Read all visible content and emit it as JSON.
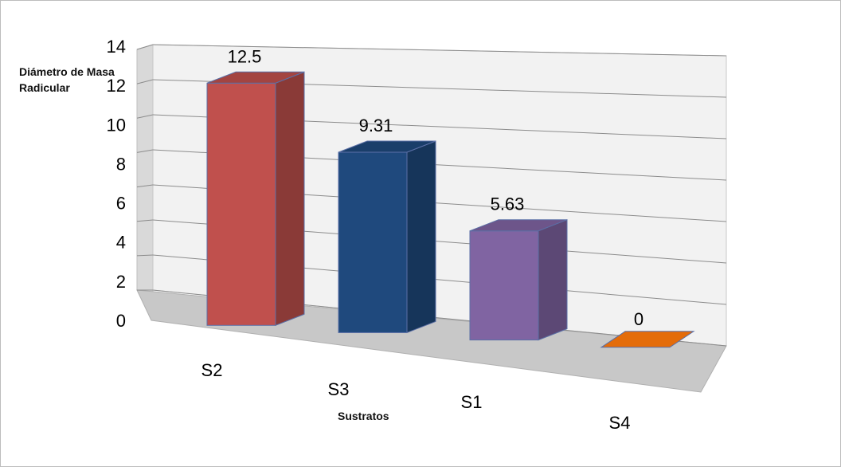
{
  "chart_data": {
    "type": "bar",
    "categories": [
      "S2",
      "S3",
      "S1",
      "S4"
    ],
    "values": [
      12.5,
      9.31,
      5.63,
      0
    ],
    "value_labels": [
      "12.5",
      "9.31",
      "5.63",
      "0"
    ],
    "ylabel": "Diámetro de Masa Radicular",
    "xlabel": "Sustratos",
    "ylim": [
      0,
      14
    ],
    "yticks": [
      "0",
      "2",
      "4",
      "6",
      "8",
      "10",
      "12",
      "14"
    ],
    "grid": true,
    "three_d": true,
    "colors": [
      "#c0504d",
      "#1f497d",
      "#8064a2",
      "#e46c0a"
    ]
  }
}
